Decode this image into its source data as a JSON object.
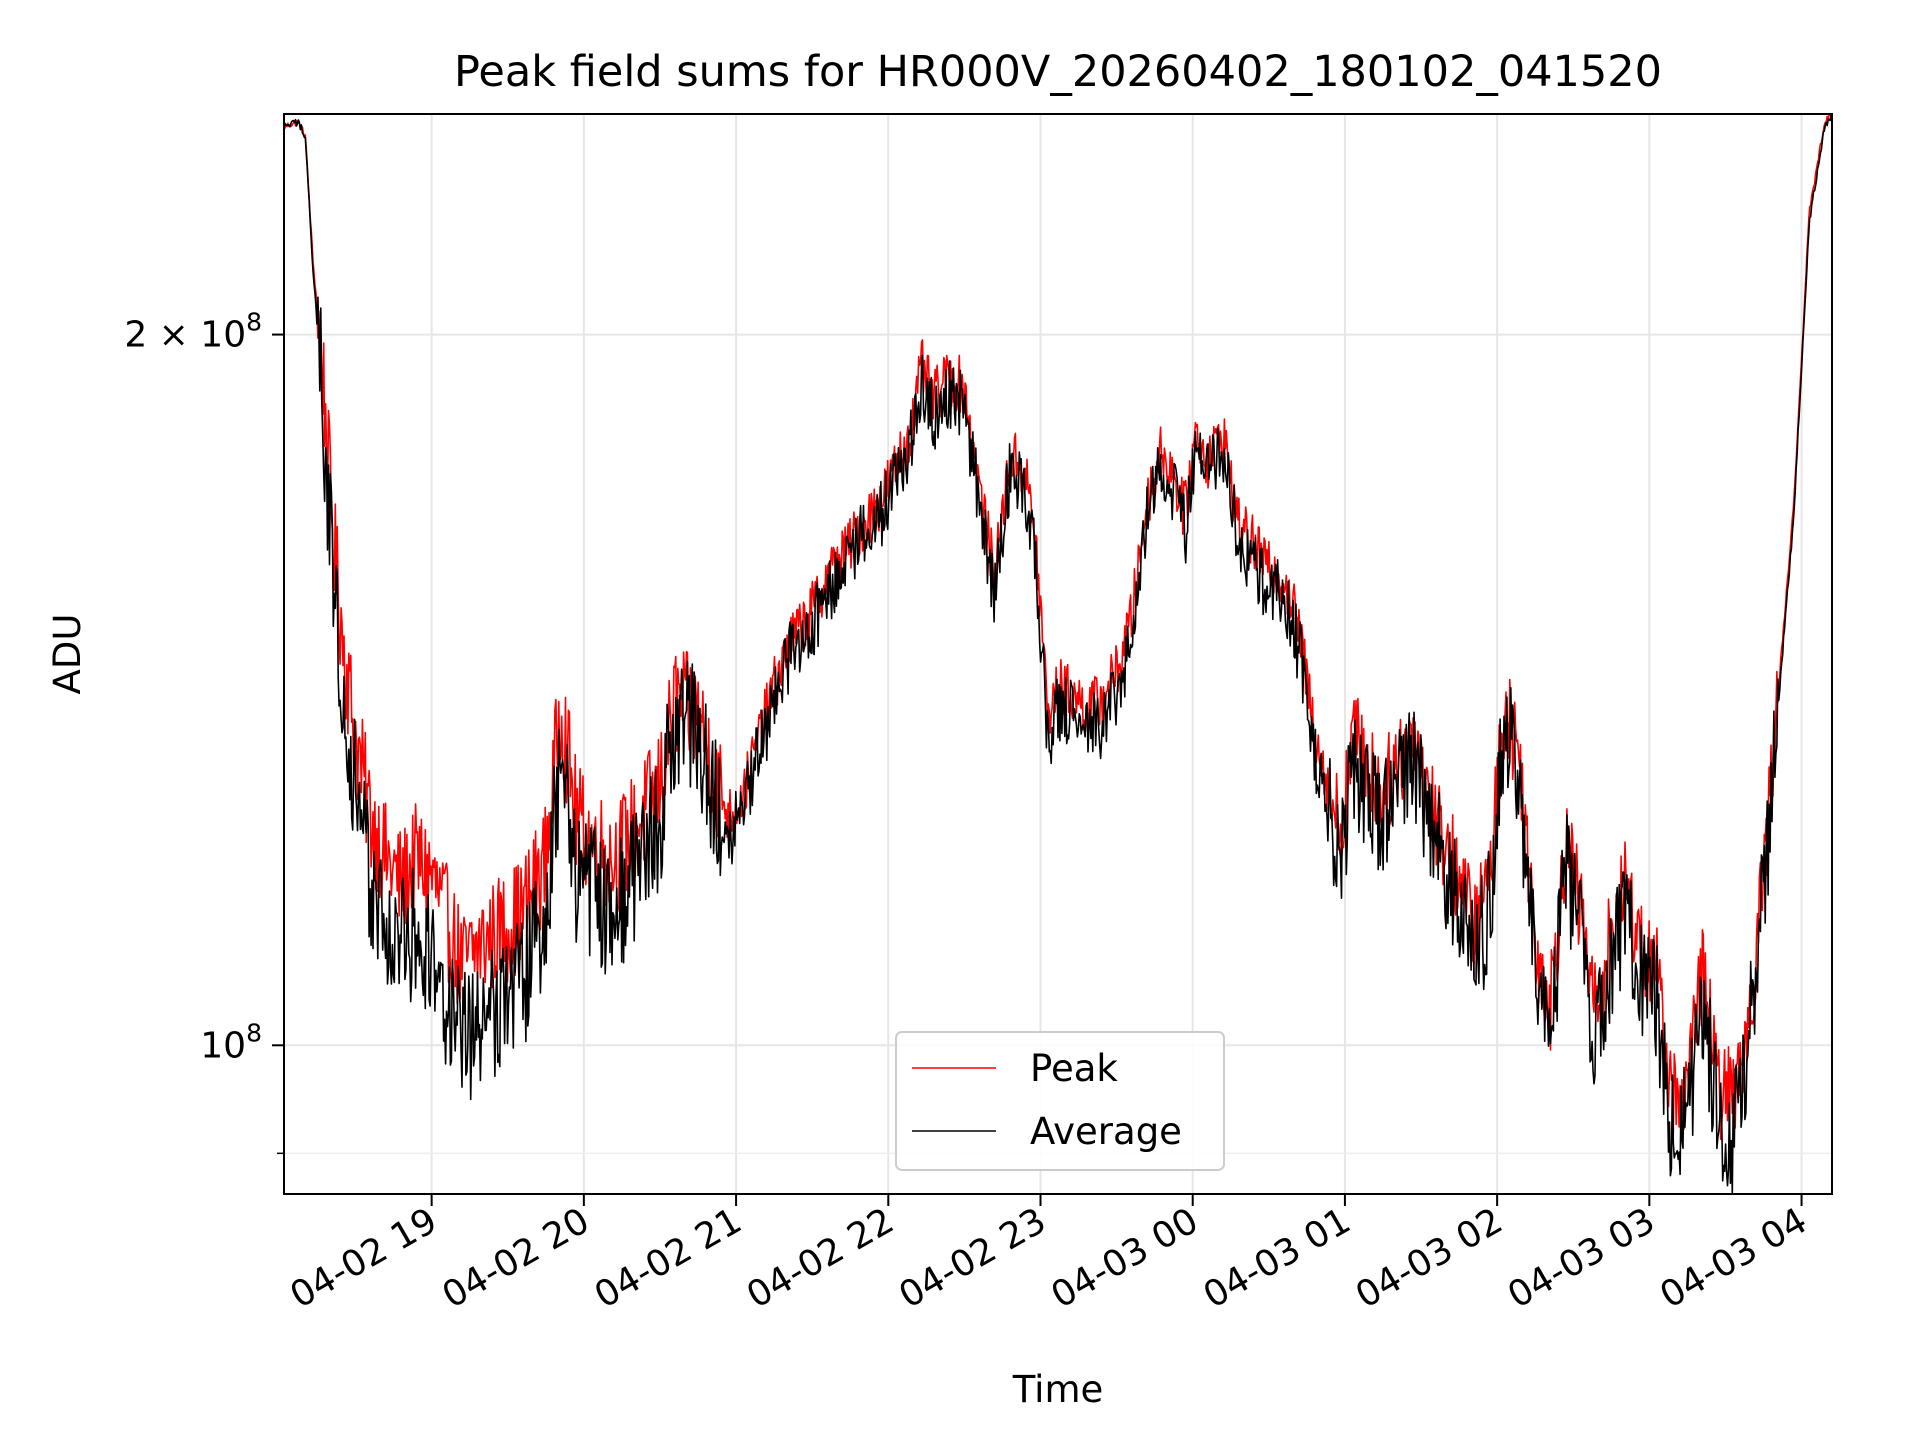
{
  "chart_data": {
    "type": "line",
    "title": "Peak field sums for HR000V_20260402_180102_041520",
    "xlabel": "Time",
    "ylabel": "ADU",
    "yscale": "log",
    "ylim": [
      86500000,
      248000000
    ],
    "xlim_hours": [
      18.03,
      28.2
    ],
    "grid": true,
    "legend_location": "lower center",
    "x_ticks": [
      {
        "hour": 19,
        "label": "04-02 19"
      },
      {
        "hour": 20,
        "label": "04-02 20"
      },
      {
        "hour": 21,
        "label": "04-02 21"
      },
      {
        "hour": 22,
        "label": "04-02 22"
      },
      {
        "hour": 23,
        "label": "04-02 23"
      },
      {
        "hour": 24,
        "label": "04-03 00"
      },
      {
        "hour": 25,
        "label": "04-03 01"
      },
      {
        "hour": 26,
        "label": "04-03 02"
      },
      {
        "hour": 27,
        "label": "04-03 03"
      },
      {
        "hour": 28,
        "label": "04-03 04"
      }
    ],
    "y_ticks": [
      {
        "value": 100000000,
        "base": "10",
        "exp": "8"
      },
      {
        "value": 200000000,
        "base": "2 × 10",
        "exp": "8"
      }
    ],
    "series": [
      {
        "name": "Peak",
        "color": "#ff0000",
        "x_hours": [
          18.03,
          18.12,
          18.17,
          18.22,
          18.28,
          18.35,
          18.42,
          18.5,
          18.6,
          18.7,
          18.8,
          18.9,
          19.0,
          19.1,
          19.2,
          19.3,
          19.45,
          19.6,
          19.75,
          19.85,
          19.9,
          19.95,
          20.05,
          20.2,
          20.35,
          20.5,
          20.6,
          20.75,
          20.85,
          20.95,
          21.05,
          21.15,
          21.25,
          21.35,
          21.5,
          21.6,
          21.75,
          21.85,
          21.95,
          22.05,
          22.15,
          22.22,
          22.3,
          22.4,
          22.5,
          22.6,
          22.7,
          22.8,
          22.9,
          22.97,
          23.05,
          23.12,
          23.2,
          23.3,
          23.4,
          23.5,
          23.6,
          23.7,
          23.8,
          23.88,
          23.95,
          24.02,
          24.1,
          24.2,
          24.3,
          24.4,
          24.5,
          24.6,
          24.7,
          24.8,
          24.9,
          24.98,
          25.05,
          25.15,
          25.25,
          25.35,
          25.45,
          25.55,
          25.65,
          25.75,
          25.85,
          25.95,
          26.05,
          26.15,
          26.25,
          26.35,
          26.45,
          26.55,
          26.65,
          26.75,
          26.85,
          26.95,
          27.05,
          27.15,
          27.25,
          27.35,
          27.45,
          27.55,
          27.65,
          27.75,
          27.85,
          27.95,
          28.05,
          28.15,
          28.2
        ],
        "values": [
          245000000,
          246000000,
          243000000,
          215000000,
          195000000,
          165000000,
          148000000,
          135000000,
          125000000,
          120000000,
          117000000,
          120000000,
          118000000,
          113000000,
          108000000,
          110000000,
          112000000,
          114000000,
          120000000,
          140000000,
          132000000,
          125000000,
          122000000,
          120000000,
          124000000,
          129000000,
          140000000,
          138000000,
          131000000,
          125000000,
          128000000,
          135000000,
          142000000,
          148000000,
          153000000,
          158000000,
          163000000,
          167000000,
          170000000,
          176000000,
          182000000,
          194000000,
          188000000,
          192000000,
          190000000,
          172000000,
          158000000,
          178000000,
          175000000,
          163000000,
          138000000,
          142000000,
          141000000,
          139000000,
          140000000,
          144000000,
          152000000,
          170000000,
          179000000,
          174000000,
          168000000,
          182000000,
          177000000,
          182000000,
          166000000,
          163000000,
          159000000,
          158000000,
          150000000,
          136000000,
          128000000,
          123000000,
          136000000,
          131000000,
          128000000,
          132000000,
          136000000,
          128000000,
          122000000,
          118000000,
          112000000,
          118000000,
          140000000,
          132000000,
          111000000,
          104000000,
          122000000,
          114000000,
          103000000,
          112000000,
          117000000,
          110000000,
          107000000,
          95000000,
          96000000,
          108000000,
          96000000,
          95000000,
          102000000,
          118000000,
          142000000,
          170000000,
          225000000,
          246000000,
          248000000
        ]
      },
      {
        "name": "Average",
        "color": "#000000",
        "x_hours": [
          18.03,
          18.12,
          18.17,
          18.22,
          18.28,
          18.35,
          18.42,
          18.5,
          18.6,
          18.7,
          18.8,
          18.9,
          19.0,
          19.1,
          19.2,
          19.3,
          19.45,
          19.6,
          19.75,
          19.85,
          19.9,
          19.95,
          20.05,
          20.2,
          20.35,
          20.5,
          20.6,
          20.75,
          20.85,
          20.95,
          21.05,
          21.15,
          21.25,
          21.35,
          21.5,
          21.6,
          21.75,
          21.85,
          21.95,
          22.05,
          22.15,
          22.22,
          22.3,
          22.4,
          22.5,
          22.6,
          22.7,
          22.8,
          22.9,
          22.97,
          23.05,
          23.12,
          23.2,
          23.3,
          23.4,
          23.5,
          23.6,
          23.7,
          23.8,
          23.88,
          23.95,
          24.02,
          24.1,
          24.2,
          24.3,
          24.4,
          24.5,
          24.6,
          24.7,
          24.8,
          24.9,
          24.98,
          25.05,
          25.15,
          25.25,
          25.35,
          25.45,
          25.55,
          25.65,
          25.75,
          25.85,
          25.95,
          26.05,
          26.15,
          26.25,
          26.35,
          26.45,
          26.55,
          26.65,
          26.75,
          26.85,
          26.95,
          27.05,
          27.15,
          27.25,
          27.35,
          27.45,
          27.55,
          27.65,
          27.75,
          27.85,
          27.95,
          28.05,
          28.15,
          28.2
        ],
        "values": [
          245000000,
          246000000,
          243000000,
          213000000,
          190000000,
          158000000,
          142000000,
          128000000,
          117000000,
          112000000,
          110000000,
          112000000,
          109000000,
          104000000,
          100000000,
          102000000,
          105000000,
          107000000,
          113000000,
          134000000,
          126000000,
          118000000,
          116000000,
          114000000,
          119000000,
          125000000,
          137000000,
          136000000,
          129000000,
          123000000,
          126000000,
          133000000,
          140000000,
          146000000,
          151000000,
          156000000,
          161000000,
          165000000,
          168000000,
          174000000,
          180000000,
          191000000,
          185000000,
          189000000,
          187000000,
          169000000,
          155000000,
          175000000,
          172000000,
          160000000,
          135000000,
          139000000,
          138000000,
          136000000,
          137000000,
          141000000,
          149000000,
          168000000,
          176000000,
          171000000,
          165000000,
          179000000,
          174000000,
          179000000,
          163000000,
          160000000,
          156000000,
          155000000,
          147000000,
          133000000,
          125000000,
          120000000,
          133000000,
          128000000,
          125000000,
          129000000,
          133000000,
          125000000,
          119000000,
          115000000,
          108000000,
          115000000,
          137000000,
          129000000,
          108000000,
          101000000,
          119000000,
          111000000,
          100000000,
          109000000,
          114000000,
          107000000,
          104000000,
          92000000,
          93000000,
          105000000,
          93000000,
          92000000,
          100000000,
          116000000,
          140000000,
          168000000,
          223000000,
          245000000,
          248000000
        ]
      }
    ]
  }
}
